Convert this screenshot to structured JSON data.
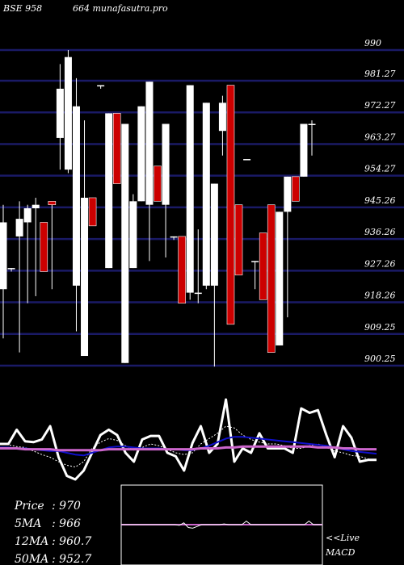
{
  "header": {
    "left": "BSE 958",
    "right": "664  munafasutra.pro"
  },
  "stats": [
    {
      "label": "Price",
      "value": ": 970"
    },
    {
      "label": "5MA",
      "value": ": 966"
    },
    {
      "label": "12MA",
      "value": ": 960.7"
    },
    {
      "label": "50MA",
      "value": ": 952.7"
    }
  ],
  "macd_label_line1": "<<Live",
  "macd_label_line2": "MACD",
  "colors": {
    "background": "#000000",
    "gridline": "#1a1a66",
    "up_candle": "#ffffff",
    "down_candle": "#cc0000",
    "ma_short": "#ffffff",
    "ma_mid": "#1010cc",
    "ma_long": "#cc66cc",
    "macd_signal": "#cc66cc"
  },
  "chart_data": [
    {
      "type": "candlestick",
      "y_tick_labels": [
        "990",
        "981.27",
        "972.27",
        "963.27",
        "954.27",
        "945.26",
        "936.26",
        "927.26",
        "918.26",
        "909.25",
        "900.25"
      ],
      "ylim": [
        900.25,
        990
      ],
      "candles": [
        {
          "o": 922,
          "h": 946,
          "l": 908,
          "c": 941
        },
        {
          "o": 928,
          "h": 928,
          "l": 927,
          "c": 928
        },
        {
          "o": 937,
          "h": 947,
          "l": 904,
          "c": 942
        },
        {
          "o": 941,
          "h": 946,
          "l": 918,
          "c": 945
        },
        {
          "o": 945,
          "h": 948,
          "l": 920,
          "c": 946
        },
        {
          "o": 941,
          "h": 941,
          "l": 927,
          "c": 927
        },
        {
          "o": 947,
          "h": 947,
          "l": 922,
          "c": 946
        },
        {
          "o": 965,
          "h": 986,
          "l": 956,
          "c": 979
        },
        {
          "o": 956,
          "h": 990,
          "l": 955,
          "c": 988
        },
        {
          "o": 923,
          "h": 982,
          "l": 910,
          "c": 974
        },
        {
          "o": 903,
          "h": 970,
          "l": 903,
          "c": 948
        },
        {
          "o": 948,
          "h": 948,
          "l": 940,
          "c": 940
        },
        {
          "o": 980,
          "h": 980,
          "l": 979,
          "c": 980
        },
        {
          "o": 928,
          "h": 972,
          "l": 928,
          "c": 972
        },
        {
          "o": 972,
          "h": 972,
          "l": 952,
          "c": 952
        },
        {
          "o": 901,
          "h": 969,
          "l": 901,
          "c": 969
        },
        {
          "o": 928,
          "h": 949,
          "l": 928,
          "c": 947
        },
        {
          "o": 947,
          "h": 974,
          "l": 947,
          "c": 974
        },
        {
          "o": 946,
          "h": 981,
          "l": 930,
          "c": 981
        },
        {
          "o": 957,
          "h": 957,
          "l": 947,
          "c": 947
        },
        {
          "o": 946,
          "h": 969,
          "l": 931,
          "c": 969
        },
        {
          "o": 937,
          "h": 937,
          "l": 936,
          "c": 937
        },
        {
          "o": 937,
          "h": 937,
          "l": 918,
          "c": 918
        },
        {
          "o": 921,
          "h": 980,
          "l": 919,
          "c": 980
        },
        {
          "o": 921,
          "h": 939,
          "l": 918,
          "c": 921
        },
        {
          "o": 923,
          "h": 975,
          "l": 922,
          "c": 975
        },
        {
          "o": 923,
          "h": 952,
          "l": 900,
          "c": 952
        },
        {
          "o": 967,
          "h": 977,
          "l": 960,
          "c": 975
        },
        {
          "o": 980,
          "h": 980,
          "l": 912,
          "c": 912
        },
        {
          "o": 946,
          "h": 946,
          "l": 926,
          "c": 926
        },
        {
          "o": 959,
          "h": 959,
          "l": 959,
          "c": 959
        },
        {
          "o": 930,
          "h": 930,
          "l": 922,
          "c": 930
        },
        {
          "o": 938,
          "h": 938,
          "l": 919,
          "c": 919
        },
        {
          "o": 946,
          "h": 946,
          "l": 904,
          "c": 904
        },
        {
          "o": 906,
          "h": 944,
          "l": 906,
          "c": 944
        },
        {
          "o": 944,
          "h": 954,
          "l": 914,
          "c": 954
        },
        {
          "o": 954,
          "h": 954,
          "l": 947,
          "c": 947
        },
        {
          "o": 954,
          "h": 969,
          "l": 954,
          "c": 969
        },
        {
          "o": 969,
          "h": 970,
          "l": 960,
          "c": 969
        }
      ]
    },
    {
      "type": "line",
      "name": "moving averages and price panel",
      "series": [
        {
          "key": "price",
          "values": [
            50,
            50,
            66,
            53,
            52,
            55,
            70,
            35,
            14,
            10,
            20,
            40,
            60,
            66,
            60,
            40,
            30,
            55,
            59,
            59,
            40,
            36,
            20,
            51,
            70,
            40,
            50,
            100,
            30,
            45,
            40,
            62,
            45,
            45,
            45,
            40,
            90,
            85,
            88,
            60,
            35,
            70,
            57,
            30,
            32,
            32
          ]
        },
        {
          "key": "ma_short",
          "values": [
            50,
            49,
            47,
            46,
            42,
            38,
            35,
            30,
            26,
            24,
            30,
            45,
            52,
            56,
            54,
            48,
            43,
            46,
            50,
            48,
            44,
            40,
            38,
            40,
            50,
            56,
            62,
            70,
            68,
            60,
            55,
            52,
            50,
            50,
            48,
            45,
            45,
            48,
            50,
            46,
            42,
            40,
            37,
            36,
            33,
            32
          ]
        },
        {
          "key": "ma_mid",
          "values": [
            46,
            46,
            45,
            45,
            44,
            43,
            42,
            42,
            40,
            38,
            37,
            40,
            43,
            46,
            47,
            47,
            46,
            45,
            45,
            45,
            44,
            44,
            43,
            43,
            45,
            48,
            52,
            56,
            58,
            58,
            57,
            56,
            55,
            54,
            53,
            52,
            51,
            50,
            49,
            48,
            46,
            44,
            42,
            41,
            40,
            39
          ]
        },
        {
          "key": "ma_long",
          "values": [
            45,
            45,
            45,
            44,
            44,
            44,
            44,
            43,
            43,
            43,
            43,
            43,
            43,
            44,
            44,
            44,
            44,
            44,
            44,
            44,
            44,
            44,
            44,
            44,
            45,
            45,
            45,
            46,
            46,
            47,
            47,
            47,
            47,
            47,
            47,
            47,
            47,
            47,
            46,
            46,
            46,
            45,
            45,
            44,
            44,
            44
          ]
        }
      ]
    },
    {
      "type": "line",
      "name": "MACD panel",
      "series": [
        {
          "key": "macd",
          "values": [
            50,
            50,
            50,
            50,
            50,
            50,
            50,
            50,
            50,
            50,
            50,
            50,
            50,
            48,
            55,
            42,
            40,
            45,
            50,
            50,
            50,
            50,
            50,
            52,
            50,
            50,
            50,
            50,
            60,
            50,
            50,
            50,
            50,
            50,
            50,
            50,
            50,
            50,
            50,
            50,
            50,
            50,
            60,
            50,
            50,
            50
          ]
        },
        {
          "key": "signal",
          "values": [
            50,
            50,
            50,
            50,
            50,
            50,
            50,
            50,
            50,
            50,
            50,
            50,
            50,
            50,
            50,
            50,
            50,
            50,
            50,
            50,
            50,
            50,
            50,
            50,
            50,
            50,
            50,
            50,
            50,
            50,
            50,
            50,
            50,
            50,
            50,
            50,
            50,
            50,
            50,
            50,
            50,
            50,
            50,
            50,
            50,
            50
          ]
        }
      ]
    }
  ]
}
